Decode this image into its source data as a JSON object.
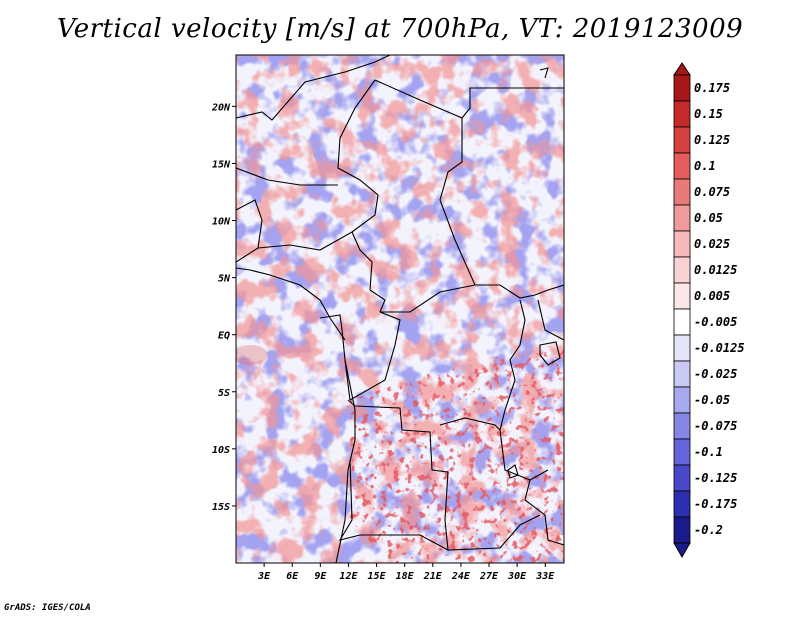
{
  "chart_data": {
    "type": "heatmap",
    "title": "Vertical velocity [m/s] at 700hPa, VT: 2019123009",
    "variable": "Vertical velocity",
    "units": "m/s",
    "level": "700hPa",
    "valid_time": "2019123009",
    "lon_range": [
      0,
      35
    ],
    "lat_range": [
      -20,
      24.5
    ],
    "lon_ticks": [
      3,
      6,
      9,
      12,
      15,
      18,
      21,
      24,
      27,
      30,
      33
    ],
    "lon_tick_labels": [
      "3E",
      "6E",
      "9E",
      "12E",
      "15E",
      "18E",
      "21E",
      "24E",
      "27E",
      "30E",
      "33E"
    ],
    "lat_ticks": [
      20,
      15,
      10,
      5,
      0,
      -5,
      -10,
      -15
    ],
    "lat_tick_labels": [
      "20N",
      "15N",
      "10N",
      "5N",
      "EQ",
      "5S",
      "10S",
      "15S"
    ],
    "colorbar_levels": [
      "0.175",
      "0.15",
      "0.125",
      "0.1",
      "0.075",
      "0.05",
      "0.025",
      "0.0125",
      "0.005",
      "-0.005",
      "-0.0125",
      "-0.025",
      "-0.05",
      "-0.075",
      "-0.1",
      "-0.125",
      "-0.175",
      "-0.2"
    ],
    "colorbar_colors": [
      "#a81818",
      "#c42a2a",
      "#d64141",
      "#e35d5d",
      "#ea7a7a",
      "#f09a9a",
      "#f5b9b9",
      "#f9d3d3",
      "#fbe7e7",
      "#ffffff",
      "#e6e6fb",
      "#c9c9f5",
      "#a8a8ef",
      "#8585e6",
      "#6565d9",
      "#4848c8",
      "#2e2eb0",
      "#1a1a8c"
    ]
  },
  "footer": "GrADS: IGES/COLA"
}
